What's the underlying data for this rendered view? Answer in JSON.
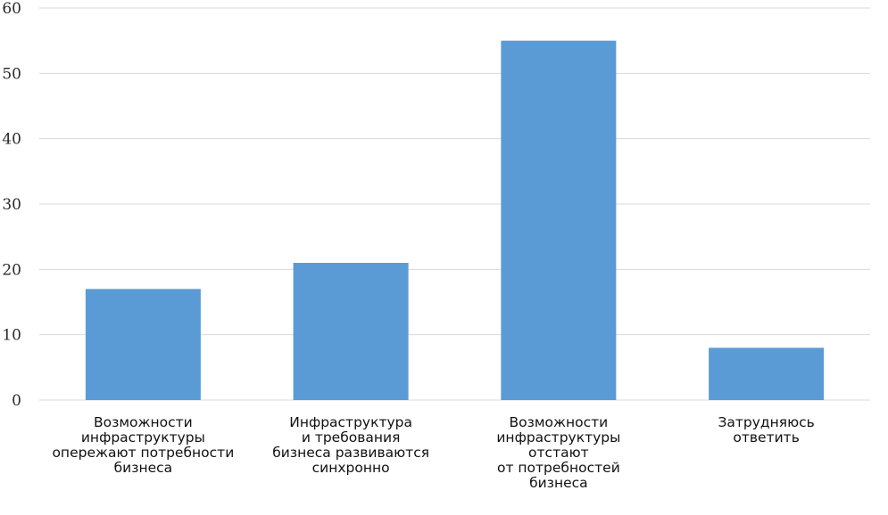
{
  "chart_data": {
    "type": "bar",
    "title": "",
    "xlabel": "",
    "ylabel": "",
    "ylim": [
      0,
      60
    ],
    "yticks": [
      0,
      10,
      20,
      30,
      40,
      50,
      60
    ],
    "grid": true,
    "legend": "none",
    "categories": [
      [
        "Возможности",
        "инфраструктуры",
        "опережают потребности",
        "бизнеса"
      ],
      [
        "Инфраструктура",
        "и требования",
        "бизнеса развиваются",
        "синхронно"
      ],
      [
        "Возможности",
        "инфраструктуры",
        "отстают",
        "от потребностей",
        "бизнеса"
      ],
      [
        "Затрудняюсь",
        "ответить"
      ]
    ],
    "values": [
      17,
      21,
      55,
      8
    ],
    "bar_color": "#5b9bd5"
  }
}
